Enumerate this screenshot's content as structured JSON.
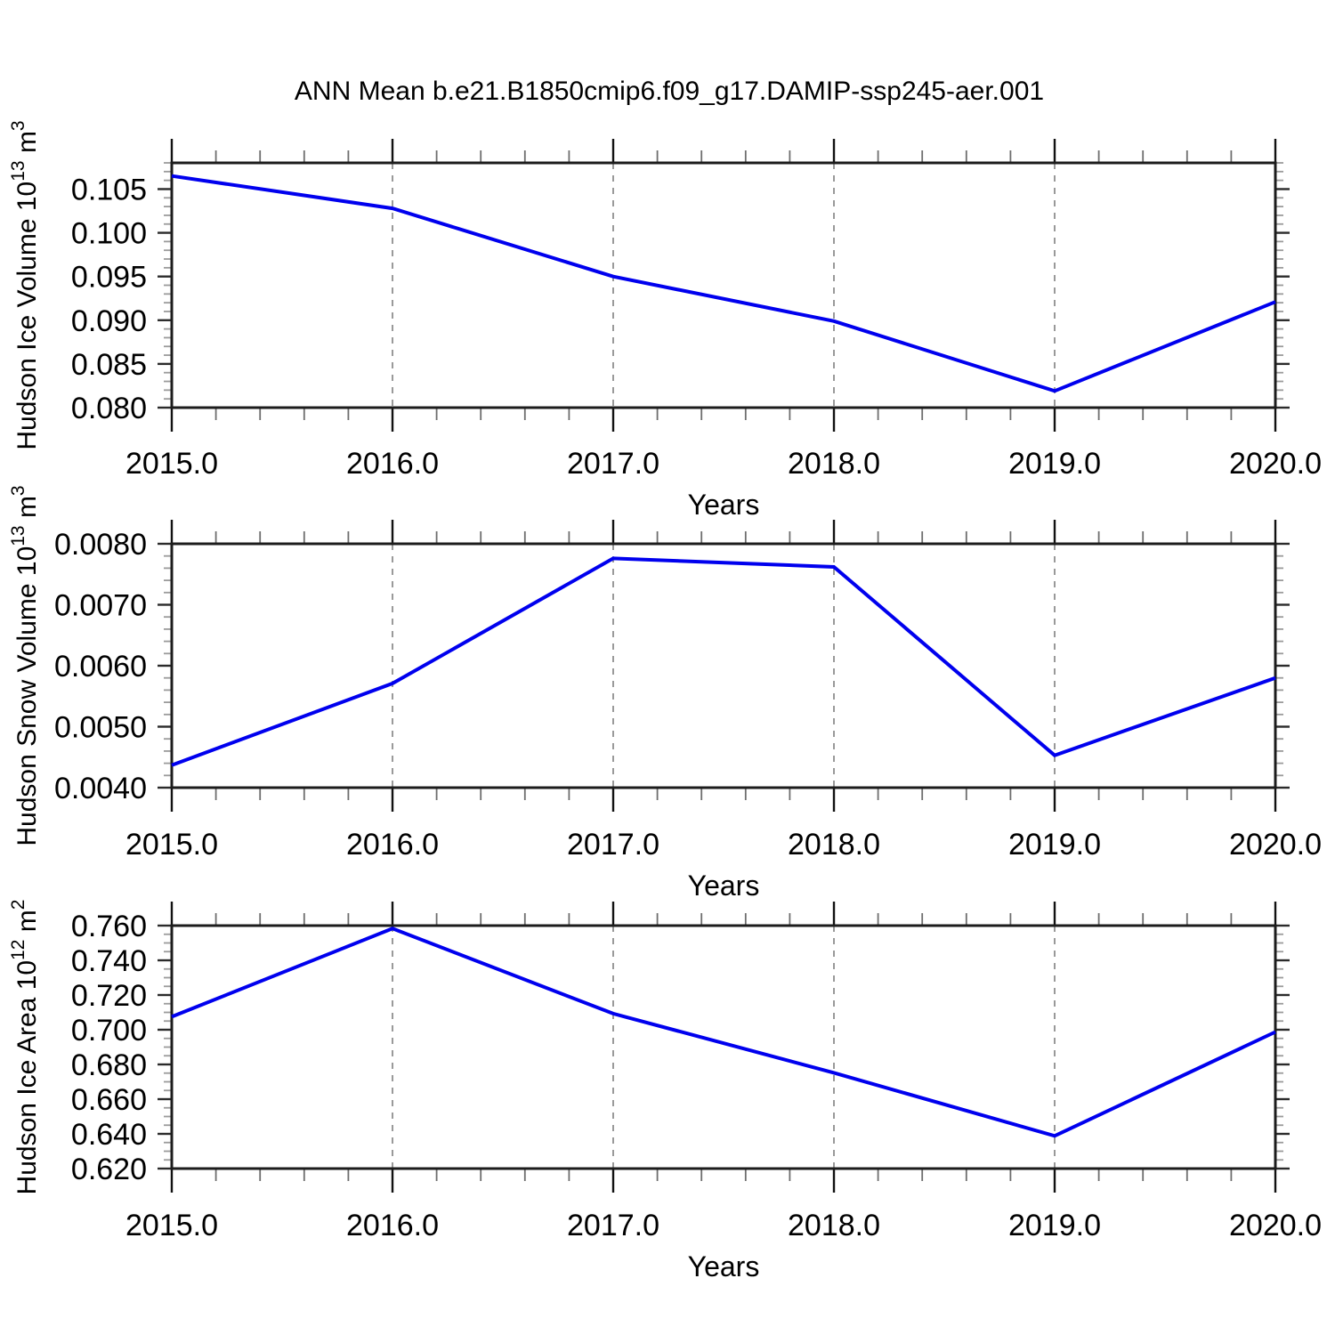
{
  "title": "ANN Mean b.e21.B1850cmip6.f09_g17.DAMIP-ssp245-aer.001",
  "colors": {
    "line_blue": "#0000EE",
    "frame": "#1c1c1c",
    "gridline_gray": "#808080"
  },
  "chart_data": [
    {
      "id": "hudson-ice-volume",
      "type": "line",
      "x": [
        2015.0,
        2016.0,
        2017.0,
        2018.0,
        2019.0,
        2020.0
      ],
      "values": [
        0.1065,
        0.1028,
        0.095,
        0.0899,
        0.0819,
        0.0921
      ],
      "xlabel": "Years",
      "ylabel": {
        "prefix": "Hudson Ice Volume 10",
        "exponent": "13",
        "unit": " m",
        "unit_exponent": "3"
      },
      "xlim": [
        2015.0,
        2020.0
      ],
      "ylim": [
        0.08,
        0.108
      ],
      "ytick_values": [
        0.08,
        0.085,
        0.09,
        0.095,
        0.1,
        0.105
      ],
      "ytick_labels": [
        "0.080",
        "0.085",
        "0.090",
        "0.095",
        "0.100",
        "0.105"
      ],
      "y_minor_step": 0.001,
      "xtick_values": [
        2015.0,
        2016.0,
        2017.0,
        2018.0,
        2019.0,
        2020.0
      ],
      "xtick_labels": [
        "2015.0",
        "2016.0",
        "2017.0",
        "2018.0",
        "2019.0",
        "2020.0"
      ],
      "x_minor_step": 0.2,
      "gridlines_x": [
        2016.0,
        2017.0,
        2018.0,
        2019.0
      ],
      "grid_on": true,
      "legend": "none",
      "line_color": "#0000EE"
    },
    {
      "id": "hudson-snow-volume",
      "type": "line",
      "x": [
        2015.0,
        2016.0,
        2017.0,
        2018.0,
        2019.0,
        2020.0
      ],
      "values": [
        0.00437,
        0.00571,
        0.00776,
        0.00762,
        0.00453,
        0.0058
      ],
      "xlabel": "Years",
      "ylabel": {
        "prefix": "Hudson Snow Volume 10",
        "exponent": "13",
        "unit": " m",
        "unit_exponent": "3"
      },
      "xlim": [
        2015.0,
        2020.0
      ],
      "ylim": [
        0.004,
        0.008
      ],
      "ytick_values": [
        0.004,
        0.005,
        0.006,
        0.007,
        0.008
      ],
      "ytick_labels": [
        "0.0040",
        "0.0050",
        "0.0060",
        "0.0070",
        "0.0080"
      ],
      "y_minor_step": 0.0002,
      "xtick_values": [
        2015.0,
        2016.0,
        2017.0,
        2018.0,
        2019.0,
        2020.0
      ],
      "xtick_labels": [
        "2015.0",
        "2016.0",
        "2017.0",
        "2018.0",
        "2019.0",
        "2020.0"
      ],
      "x_minor_step": 0.2,
      "gridlines_x": [
        2016.0,
        2017.0,
        2018.0,
        2019.0
      ],
      "grid_on": true,
      "legend": "none",
      "line_color": "#0000EE"
    },
    {
      "id": "hudson-ice-area",
      "type": "line",
      "x": [
        2015.0,
        2016.0,
        2017.0,
        2018.0,
        2019.0,
        2020.0
      ],
      "values": [
        0.7075,
        0.7583,
        0.7093,
        0.6752,
        0.6388,
        0.6987
      ],
      "xlabel": "Years",
      "ylabel": {
        "prefix": "Hudson Ice Area 10",
        "exponent": "12",
        "unit": " m",
        "unit_exponent": "2"
      },
      "xlim": [
        2015.0,
        2020.0
      ],
      "ylim": [
        0.62,
        0.76
      ],
      "ytick_values": [
        0.62,
        0.64,
        0.66,
        0.68,
        0.7,
        0.72,
        0.74,
        0.76
      ],
      "ytick_labels": [
        "0.620",
        "0.640",
        "0.660",
        "0.680",
        "0.700",
        "0.720",
        "0.740",
        "0.760"
      ],
      "y_minor_step": 0.005,
      "xtick_values": [
        2015.0,
        2016.0,
        2017.0,
        2018.0,
        2019.0,
        2020.0
      ],
      "xtick_labels": [
        "2015.0",
        "2016.0",
        "2017.0",
        "2018.0",
        "2019.0",
        "2020.0"
      ],
      "x_minor_step": 0.2,
      "gridlines_x": [
        2016.0,
        2017.0,
        2018.0,
        2019.0
      ],
      "grid_on": true,
      "legend": "none",
      "line_color": "#0000EE"
    }
  ]
}
